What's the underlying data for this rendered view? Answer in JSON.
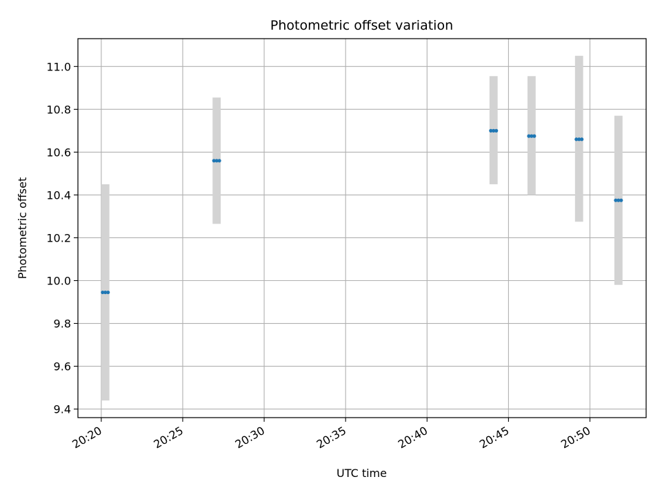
{
  "chart_data": {
    "type": "scatter",
    "title": "Photometric offset variation",
    "xlabel": "UTC time",
    "ylabel": "Photometric offset",
    "grid": true,
    "x_ticks": [
      "20:20",
      "20:25",
      "20:30",
      "20:35",
      "20:40",
      "20:45",
      "20:50"
    ],
    "y_ticks": [
      "9.4",
      "9.6",
      "9.8",
      "10.0",
      "10.2",
      "10.4",
      "10.6",
      "10.8",
      "11.0"
    ],
    "ylim": [
      9.36,
      11.13
    ],
    "xlim": [
      "20:18:34",
      "20:53:27"
    ],
    "error_bar_color": "#d3d3d3",
    "marker_color": "#1f77b4",
    "groups": [
      {
        "times": [
          "20:20:05",
          "20:20:15",
          "20:20:25"
        ],
        "value": 9.945,
        "lower": 9.44,
        "upper": 10.45,
        "bar_start": "20:20:00",
        "bar_end": "20:20:30"
      },
      {
        "times": [
          "20:26:55",
          "20:27:05",
          "20:27:15"
        ],
        "value": 10.56,
        "lower": 10.265,
        "upper": 10.855,
        "bar_start": "20:26:50",
        "bar_end": "20:27:20"
      },
      {
        "times": [
          "20:43:55",
          "20:44:05",
          "20:44:15"
        ],
        "value": 10.7,
        "lower": 10.45,
        "upper": 10.955,
        "bar_start": "20:43:50",
        "bar_end": "20:44:20"
      },
      {
        "times": [
          "20:46:15",
          "20:46:25",
          "20:46:35"
        ],
        "value": 10.675,
        "lower": 10.4,
        "upper": 10.955,
        "bar_start": "20:46:10",
        "bar_end": "20:46:40"
      },
      {
        "times": [
          "20:49:10",
          "20:49:20",
          "20:49:30"
        ],
        "value": 10.66,
        "lower": 10.275,
        "upper": 11.05,
        "bar_start": "20:49:05",
        "bar_end": "20:49:35"
      },
      {
        "times": [
          "20:51:35",
          "20:51:45",
          "20:51:55"
        ],
        "value": 10.375,
        "lower": 9.98,
        "upper": 10.77,
        "bar_start": "20:51:30",
        "bar_end": "20:52:00"
      }
    ]
  }
}
